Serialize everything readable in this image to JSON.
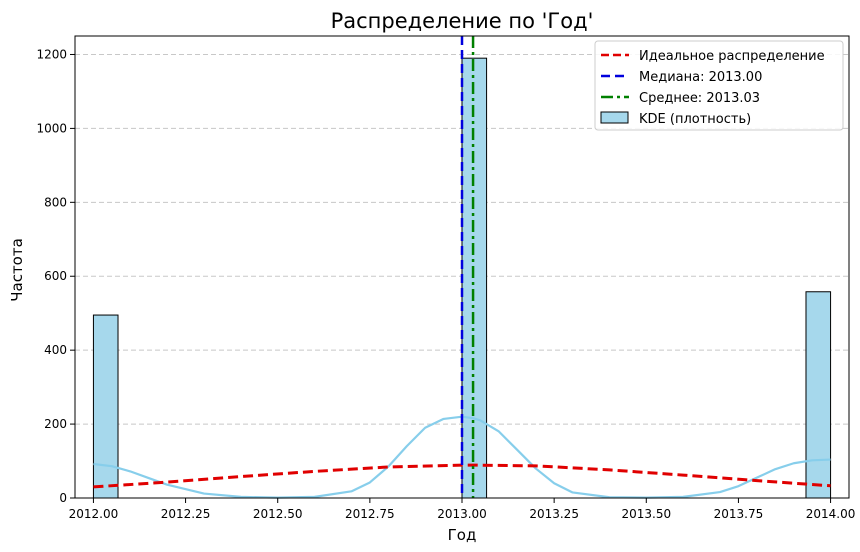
{
  "chart_data": {
    "type": "bar",
    "title": "Распределение по 'Год'",
    "xlabel": "Год",
    "ylabel": "Частота",
    "xlim": [
      2011.95,
      2014.05
    ],
    "ylim": [
      0,
      1250
    ],
    "grid": "y",
    "legend_position": "top-right",
    "x_ticks": [
      2012.0,
      2012.25,
      2012.5,
      2012.75,
      2013.0,
      2013.25,
      2013.5,
      2013.75,
      2014.0
    ],
    "x_tick_labels": [
      "2012.00",
      "2012.25",
      "2012.50",
      "2012.75",
      "2013.00",
      "2013.25",
      "2013.50",
      "2013.75",
      "2014.00"
    ],
    "y_ticks": [
      0,
      200,
      400,
      600,
      800,
      1000,
      1200
    ],
    "y_tick_labels": [
      "0",
      "200",
      "400",
      "600",
      "800",
      "1000",
      "1200"
    ],
    "histogram": {
      "label": "KDE (плотность)",
      "color": "#a6d8ec",
      "edge_color": "#000000",
      "bin_width": 0.0667,
      "bars": [
        {
          "x_start": 2012.0,
          "x_end": 2012.0667,
          "count": 495
        },
        {
          "x_start": 2013.0,
          "x_end": 2013.0667,
          "count": 1190
        },
        {
          "x_start": 2013.9333,
          "x_end": 2014.0,
          "count": 558
        }
      ]
    },
    "kde": {
      "color": "#87ceeb",
      "x": [
        2012.0,
        2012.05,
        2012.1,
        2012.15,
        2012.2,
        2012.3,
        2012.4,
        2012.5,
        2012.6,
        2012.7,
        2012.75,
        2012.8,
        2012.85,
        2012.9,
        2012.95,
        2013.0,
        2013.03,
        2013.05,
        2013.1,
        2013.15,
        2013.2,
        2013.25,
        2013.3,
        2013.4,
        2013.5,
        2013.6,
        2013.7,
        2013.75,
        2013.8,
        2013.85,
        2013.9,
        2013.95,
        2014.0
      ],
      "y": [
        92,
        86,
        72,
        54,
        36,
        12,
        3,
        1,
        3,
        18,
        42,
        85,
        140,
        190,
        214,
        220,
        216,
        210,
        180,
        130,
        80,
        40,
        15,
        2,
        1,
        3,
        16,
        32,
        55,
        78,
        94,
        102,
        104
      ]
    },
    "series": [
      {
        "name": "Идеальное распределение",
        "style": "dashed",
        "color": "#e00000",
        "x": [
          2012.0,
          2012.2,
          2012.4,
          2012.6,
          2012.8,
          2013.0,
          2013.03,
          2013.2,
          2013.4,
          2013.6,
          2013.8,
          2014.0
        ],
        "y": [
          30,
          43,
          58,
          72,
          84,
          89,
          89,
          87,
          76,
          62,
          47,
          33
        ]
      }
    ],
    "vlines": [
      {
        "name": "Медиана: 2013.00",
        "x": 2013.0,
        "style": "dashed",
        "color": "#0000dd"
      },
      {
        "name": "Среднее: 2013.03",
        "x": 2013.03,
        "style": "dashdot",
        "color": "#008000"
      }
    ]
  }
}
